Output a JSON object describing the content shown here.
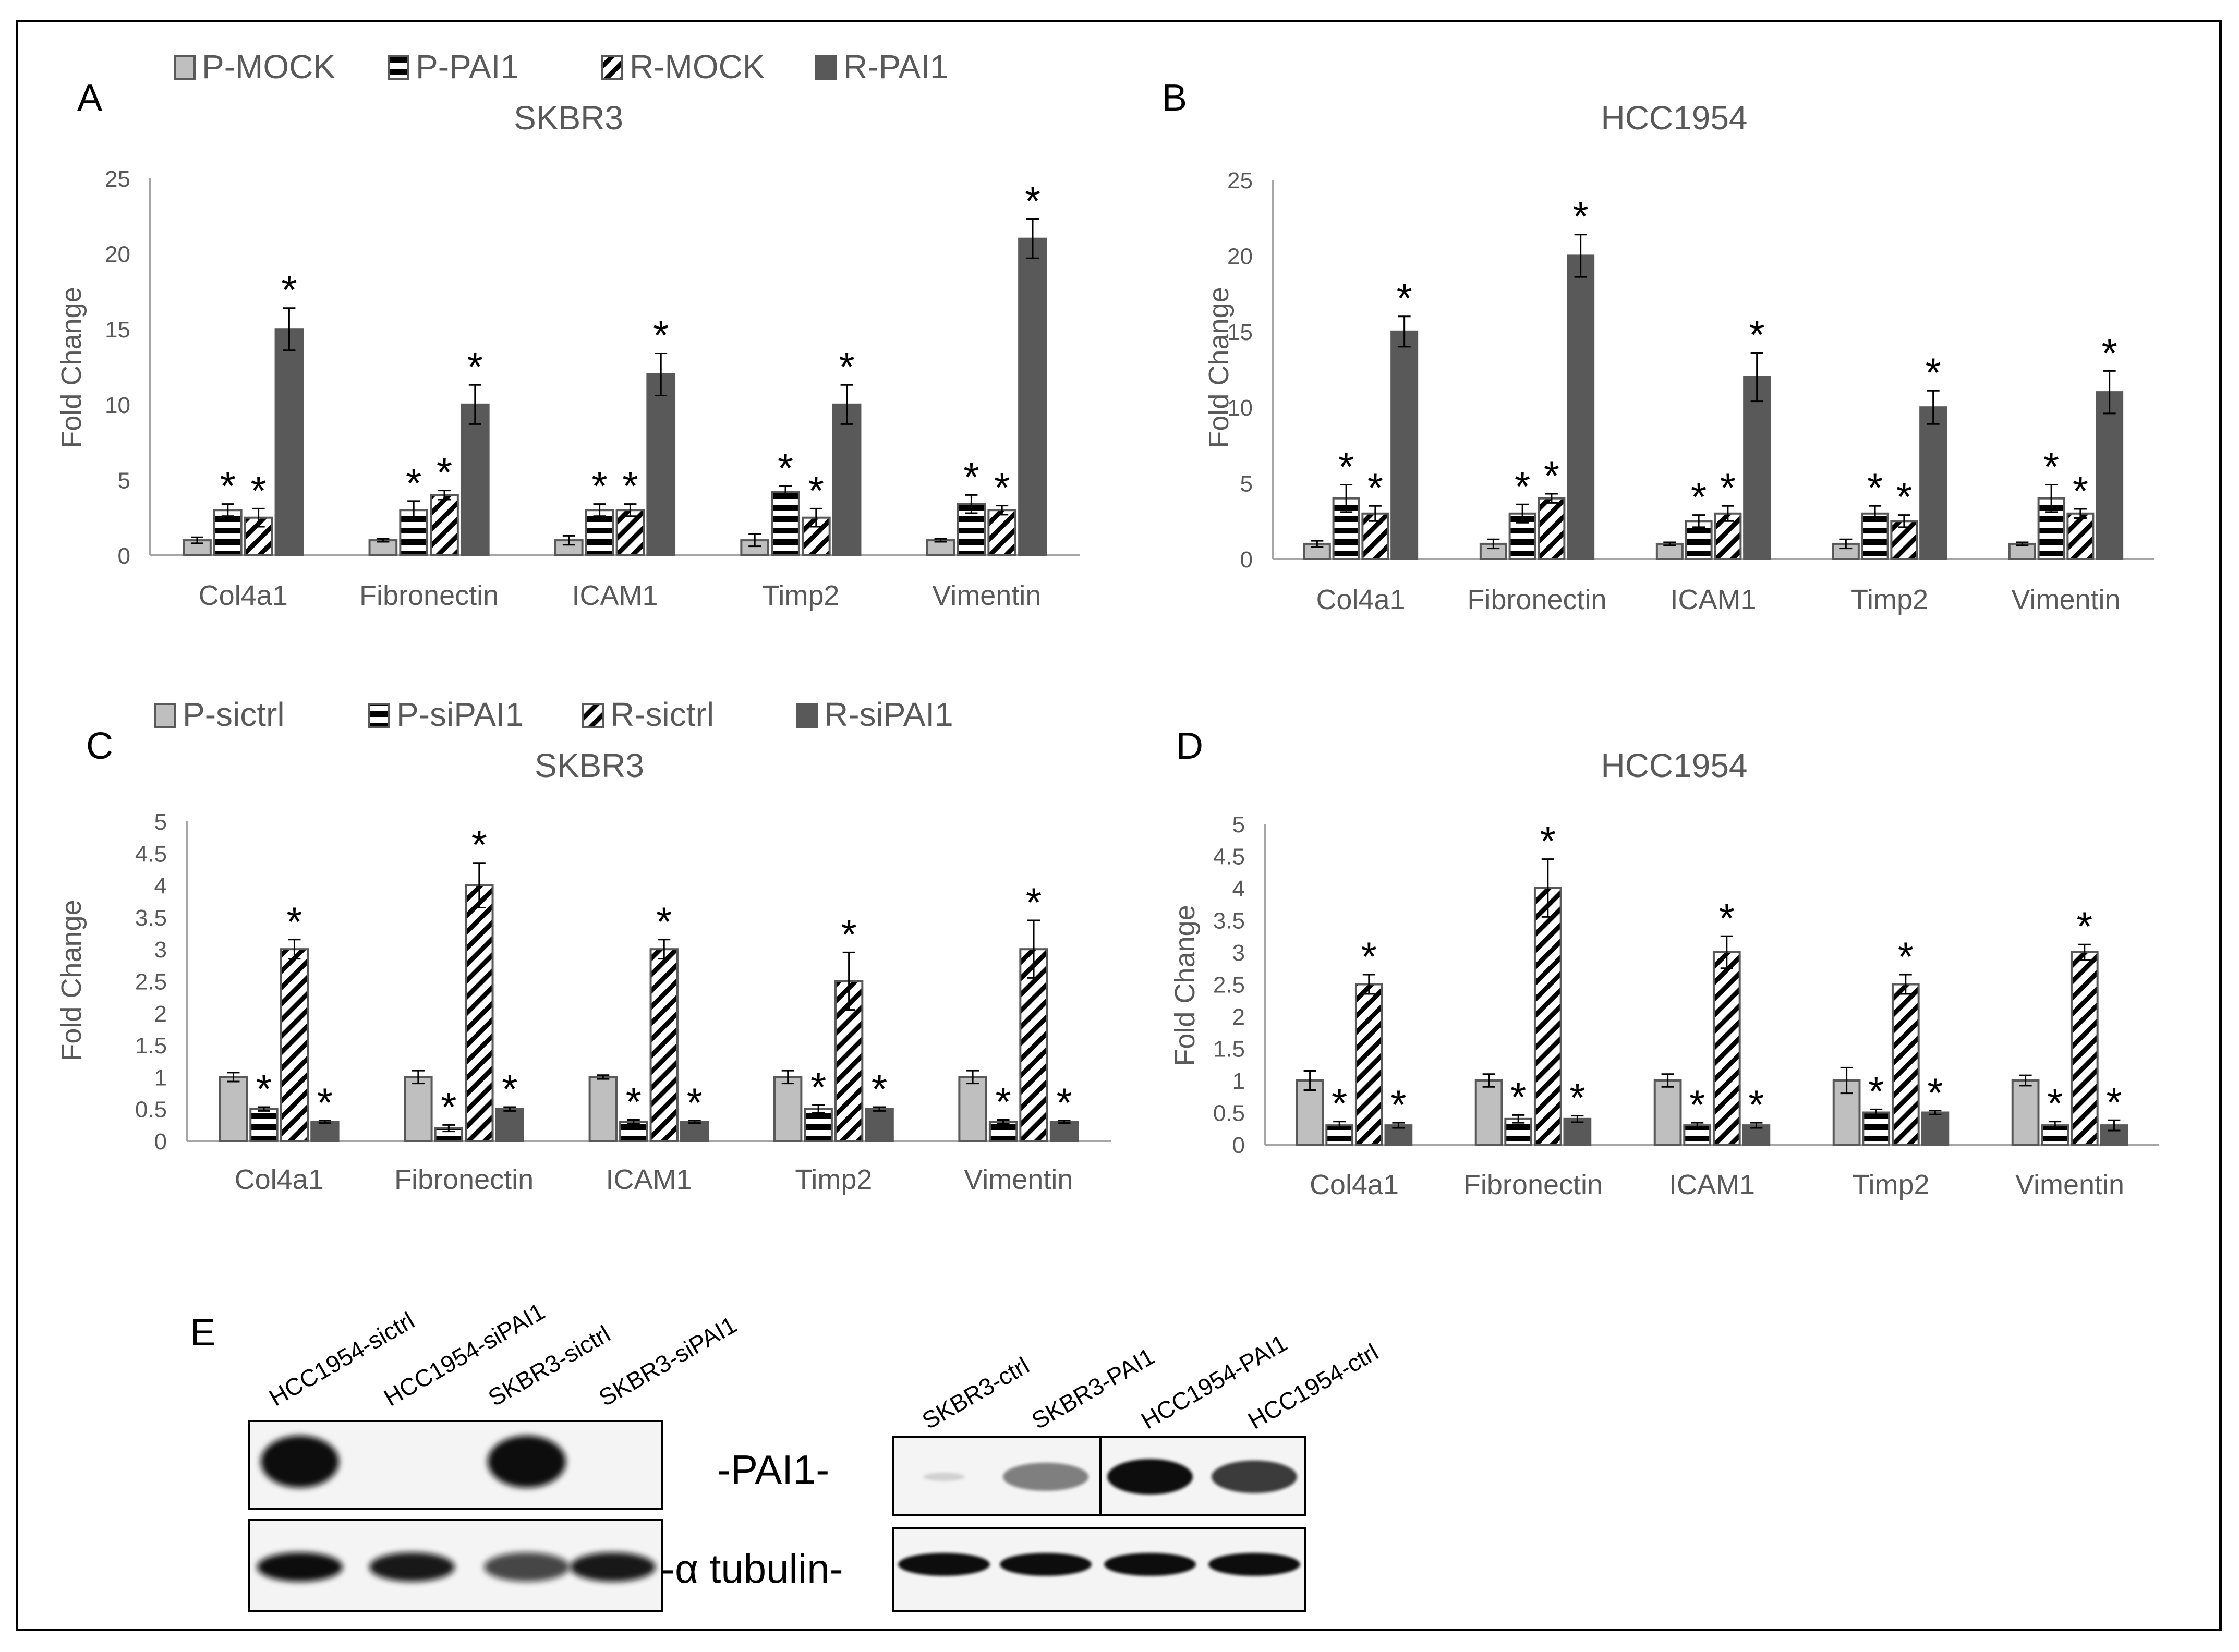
{
  "colors": {
    "gray": "#bfbfbf",
    "dark": "#595959",
    "stroke": "#595959",
    "axis": "#a6a6a6",
    "text": "#595959"
  },
  "legends": {
    "AB": [
      "P-MOCK",
      "P-PAI1",
      "R-MOCK",
      "R-PAI1"
    ],
    "CD": [
      "P-sictrl",
      "P-siPAI1",
      "R-sictrl",
      "R-siPAI1"
    ]
  },
  "chart_data": [
    {
      "panel": "A",
      "title": "SKBR3",
      "type": "bar",
      "ylabel": "Fold Change",
      "ylim": [
        0,
        25
      ],
      "yticks": [
        "0",
        "5",
        "10",
        "15",
        "20",
        "25"
      ],
      "categories": [
        "Col4a1",
        "Fibronectin",
        "ICAM1",
        "Timp2",
        "Vimentin"
      ],
      "series": [
        {
          "name": "P-MOCK",
          "pattern": "solid-gray",
          "values": [
            1,
            1,
            1,
            1,
            1
          ],
          "errors": [
            0.2,
            0.1,
            0.3,
            0.4,
            0.1
          ],
          "stars": [
            false,
            false,
            false,
            false,
            false
          ]
        },
        {
          "name": "P-PAI1",
          "pattern": "horizontal",
          "values": [
            3,
            3,
            3,
            4.2,
            3.4
          ],
          "errors": [
            0.4,
            0.6,
            0.4,
            0.4,
            0.6
          ],
          "stars": [
            true,
            true,
            true,
            true,
            true
          ]
        },
        {
          "name": "R-MOCK",
          "pattern": "diagonal",
          "values": [
            2.5,
            4,
            3,
            2.5,
            3
          ],
          "errors": [
            0.6,
            0.3,
            0.4,
            0.6,
            0.3
          ],
          "stars": [
            true,
            true,
            true,
            true,
            true
          ]
        },
        {
          "name": "R-PAI1",
          "pattern": "solid-dark",
          "values": [
            15,
            10,
            12,
            10,
            21
          ],
          "errors": [
            1.4,
            1.3,
            1.4,
            1.3,
            1.3
          ],
          "stars": [
            true,
            true,
            true,
            true,
            true
          ]
        }
      ]
    },
    {
      "panel": "B",
      "title": "HCC1954",
      "type": "bar",
      "ylabel": "Fold Change",
      "ylim": [
        0,
        25
      ],
      "yticks": [
        "0",
        "5",
        "10",
        "15",
        "20",
        "25"
      ],
      "categories": [
        "Col4a1",
        "Fibronectin",
        "ICAM1",
        "Timp2",
        "Vimentin"
      ],
      "series": [
        {
          "name": "P-MOCK",
          "pattern": "solid-gray",
          "values": [
            1,
            1,
            1,
            1,
            1
          ],
          "errors": [
            0.2,
            0.3,
            0.1,
            0.3,
            0.1
          ],
          "stars": [
            false,
            false,
            false,
            false,
            false
          ]
        },
        {
          "name": "P-PAI1",
          "pattern": "horizontal",
          "values": [
            4,
            3,
            2.5,
            3,
            4
          ],
          "errors": [
            0.9,
            0.6,
            0.4,
            0.5,
            0.9
          ],
          "stars": [
            true,
            true,
            true,
            true,
            true
          ]
        },
        {
          "name": "R-MOCK",
          "pattern": "diagonal",
          "values": [
            3,
            4,
            3,
            2.5,
            3
          ],
          "errors": [
            0.5,
            0.3,
            0.5,
            0.4,
            0.3
          ],
          "stars": [
            true,
            true,
            true,
            true,
            true
          ]
        },
        {
          "name": "R-PAI1",
          "pattern": "solid-dark",
          "values": [
            15,
            20,
            12,
            10,
            11
          ],
          "errors": [
            1,
            1.4,
            1.6,
            1.1,
            1.4
          ],
          "stars": [
            true,
            true,
            true,
            true,
            true
          ]
        }
      ]
    },
    {
      "panel": "C",
      "title": "SKBR3",
      "type": "bar",
      "ylabel": "Fold Change",
      "ylim": [
        0,
        5
      ],
      "yticks": [
        "0",
        "0.5",
        "1",
        "1.5",
        "2",
        "2.5",
        "3",
        "3.5",
        "4",
        "4.5",
        "5"
      ],
      "categories": [
        "Col4a1",
        "Fibronectin",
        "ICAM1",
        "Timp2",
        "Vimentin"
      ],
      "series": [
        {
          "name": "P-sictrl",
          "pattern": "solid-gray",
          "values": [
            1,
            1,
            1,
            1,
            1
          ],
          "errors": [
            0.07,
            0.1,
            0.03,
            0.1,
            0.1
          ],
          "stars": [
            false,
            false,
            false,
            false,
            false
          ]
        },
        {
          "name": "P-siPAI1",
          "pattern": "horizontal",
          "values": [
            0.5,
            0.2,
            0.3,
            0.5,
            0.3
          ],
          "errors": [
            0.03,
            0.05,
            0.03,
            0.06,
            0.03
          ],
          "stars": [
            true,
            true,
            true,
            true,
            true
          ]
        },
        {
          "name": "R-sictrl",
          "pattern": "diagonal",
          "values": [
            3,
            4,
            3,
            2.5,
            3
          ],
          "errors": [
            0.15,
            0.35,
            0.15,
            0.45,
            0.45
          ],
          "stars": [
            true,
            true,
            true,
            true,
            true
          ]
        },
        {
          "name": "R-siPAI1",
          "pattern": "solid-dark",
          "values": [
            0.3,
            0.5,
            0.3,
            0.5,
            0.3
          ],
          "errors": [
            0.02,
            0.03,
            0.02,
            0.03,
            0.02
          ],
          "stars": [
            true,
            true,
            true,
            true,
            true
          ]
        }
      ]
    },
    {
      "panel": "D",
      "title": "HCC1954",
      "type": "bar",
      "ylabel": "Fold Change",
      "ylim": [
        0,
        5
      ],
      "yticks": [
        "0",
        "0.5",
        "1",
        "1.5",
        "2",
        "2.5",
        "3",
        "3.5",
        "4",
        "4.5",
        "5"
      ],
      "categories": [
        "Col4a1",
        "Fibronectin",
        "ICAM1",
        "Timp2",
        "Vimentin"
      ],
      "series": [
        {
          "name": "P-sictrl",
          "pattern": "solid-gray",
          "values": [
            1,
            1,
            1,
            1,
            1
          ],
          "errors": [
            0.15,
            0.1,
            0.1,
            0.2,
            0.08
          ],
          "stars": [
            false,
            false,
            false,
            false,
            false
          ]
        },
        {
          "name": "P-siPAI1",
          "pattern": "horizontal",
          "values": [
            0.3,
            0.4,
            0.3,
            0.5,
            0.3
          ],
          "errors": [
            0.06,
            0.06,
            0.04,
            0.05,
            0.06
          ],
          "stars": [
            true,
            true,
            true,
            true,
            true
          ]
        },
        {
          "name": "R-sictrl",
          "pattern": "diagonal",
          "values": [
            2.5,
            4,
            3,
            2.5,
            3
          ],
          "errors": [
            0.15,
            0.45,
            0.25,
            0.15,
            0.12
          ],
          "stars": [
            true,
            true,
            true,
            true,
            true
          ]
        },
        {
          "name": "R-siPAI1",
          "pattern": "solid-dark",
          "values": [
            0.3,
            0.4,
            0.3,
            0.5,
            0.3
          ],
          "errors": [
            0.04,
            0.05,
            0.04,
            0.03,
            0.08
          ],
          "stars": [
            true,
            true,
            true,
            true,
            true
          ]
        }
      ]
    }
  ],
  "panel_letters": {
    "A": "A",
    "B": "B",
    "C": "C",
    "D": "D",
    "E": "E"
  },
  "blot": {
    "left_lanes": [
      "HCC1954-sictrl",
      "HCC1954-siPAI1",
      "SKBR3-sictrl",
      "SKBR3-siPAI1"
    ],
    "right_lanes": [
      "SKBR3-ctrl",
      "SKBR3-PAI1",
      "HCC1954-PAI1",
      "HCC1954-ctrl"
    ],
    "row_labels": [
      "-PAI1-",
      "-α tubulin-"
    ],
    "pai1_left": [
      1,
      0,
      1,
      0
    ],
    "pai1_right": [
      0.1,
      0.5,
      1,
      0.8
    ]
  }
}
